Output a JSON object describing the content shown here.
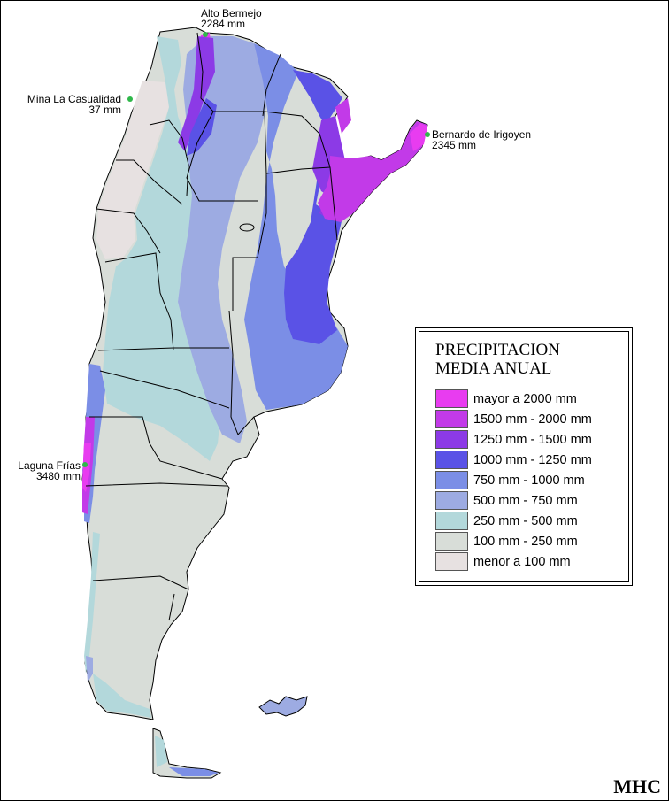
{
  "legend": {
    "title_line1": "PRECIPITACION",
    "title_line2": "MEDIA ANUAL",
    "items": [
      {
        "label": "mayor a 2000 mm",
        "color": "#e83cf0"
      },
      {
        "label": "1500 mm - 2000 mm",
        "color": "#c23ae8"
      },
      {
        "label": "1250 mm - 1500 mm",
        "color": "#8c3ae6"
      },
      {
        "label": "1000 mm - 1250 mm",
        "color": "#5a52e6"
      },
      {
        "label": "750 mm - 1000 mm",
        "color": "#7b8ee6"
      },
      {
        "label": "500 mm - 750 mm",
        "color": "#9dabe2"
      },
      {
        "label": "250 mm - 500 mm",
        "color": "#b3d8db"
      },
      {
        "label": "100 mm - 250 mm",
        "color": "#d8ddd8"
      },
      {
        "label": "menor a 100 mm",
        "color": "#e7e1e1"
      }
    ]
  },
  "annotations": {
    "alto_bermejo": {
      "name": "Alto Bermejo",
      "value": "2284 mm"
    },
    "mina_la_casualidad": {
      "name": "Mina La Casualidad",
      "value": "37 mm"
    },
    "bernardo_de_irigoyen": {
      "name": "Bernardo de Irigoyen",
      "value": "2345 mm"
    },
    "laguna_frias": {
      "name": "Laguna Frías",
      "value": "3480 mm"
    },
    "marker_color": "#2fb84a"
  },
  "signature": "MHC"
}
